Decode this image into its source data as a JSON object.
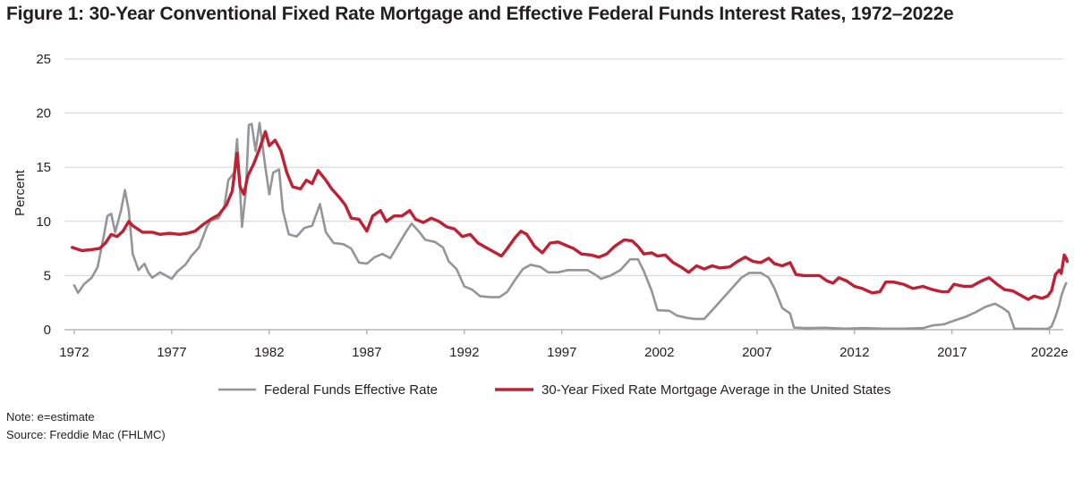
{
  "chart_data": {
    "type": "line",
    "title": "Figure 1: 30-Year Conventional Fixed Rate Mortgage and Effective Federal Funds Interest Rates, 1972–2022e",
    "ylabel": "Percent",
    "xlabel": "",
    "ylim": [
      0,
      25
    ],
    "yticks": [
      "0",
      "5",
      "10",
      "15",
      "20",
      "25"
    ],
    "xlim": [
      1971.5,
      2022.7
    ],
    "xticks": [
      {
        "year": 1972,
        "label": "1972"
      },
      {
        "year": 1977,
        "label": "1977"
      },
      {
        "year": 1982,
        "label": "1982"
      },
      {
        "year": 1987,
        "label": "1987"
      },
      {
        "year": 1992,
        "label": "1992"
      },
      {
        "year": 1997,
        "label": "1997"
      },
      {
        "year": 2002,
        "label": "2002"
      },
      {
        "year": 2007,
        "label": "2007"
      },
      {
        "year": 2012,
        "label": "2012"
      },
      {
        "year": 2017,
        "label": "2017"
      },
      {
        "year": 2022,
        "label": "2022e"
      }
    ],
    "grid": true,
    "legend_position": "bottom",
    "series": [
      {
        "name": "Federal Funds Effective Rate",
        "color": "#939598",
        "points": [
          [
            1972.0,
            4.1
          ],
          [
            1972.2,
            3.4
          ],
          [
            1972.5,
            4.2
          ],
          [
            1972.9,
            4.8
          ],
          [
            1973.2,
            5.8
          ],
          [
            1973.5,
            8.5
          ],
          [
            1973.7,
            10.5
          ],
          [
            1973.9,
            10.7
          ],
          [
            1974.1,
            9.0
          ],
          [
            1974.4,
            11.0
          ],
          [
            1974.6,
            12.9
          ],
          [
            1974.8,
            11.0
          ],
          [
            1975.0,
            7.0
          ],
          [
            1975.3,
            5.5
          ],
          [
            1975.6,
            6.1
          ],
          [
            1975.8,
            5.3
          ],
          [
            1976.0,
            4.8
          ],
          [
            1976.4,
            5.3
          ],
          [
            1976.8,
            4.9
          ],
          [
            1977.0,
            4.7
          ],
          [
            1977.3,
            5.4
          ],
          [
            1977.7,
            6.0
          ],
          [
            1978.0,
            6.8
          ],
          [
            1978.4,
            7.6
          ],
          [
            1978.8,
            9.5
          ],
          [
            1979.0,
            10.1
          ],
          [
            1979.4,
            10.3
          ],
          [
            1979.7,
            11.4
          ],
          [
            1979.9,
            13.8
          ],
          [
            1980.2,
            14.5
          ],
          [
            1980.35,
            17.6
          ],
          [
            1980.5,
            13.0
          ],
          [
            1980.6,
            9.5
          ],
          [
            1980.8,
            12.8
          ],
          [
            1980.95,
            18.9
          ],
          [
            1981.1,
            19.0
          ],
          [
            1981.3,
            16.5
          ],
          [
            1981.5,
            19.1
          ],
          [
            1981.8,
            15.0
          ],
          [
            1982.0,
            12.5
          ],
          [
            1982.2,
            14.5
          ],
          [
            1982.5,
            14.8
          ],
          [
            1982.7,
            11.0
          ],
          [
            1983.0,
            8.8
          ],
          [
            1983.4,
            8.6
          ],
          [
            1983.8,
            9.4
          ],
          [
            1984.2,
            9.6
          ],
          [
            1984.6,
            11.6
          ],
          [
            1984.9,
            9.0
          ],
          [
            1985.3,
            8.0
          ],
          [
            1985.8,
            7.9
          ],
          [
            1986.2,
            7.5
          ],
          [
            1986.6,
            6.2
          ],
          [
            1987.0,
            6.1
          ],
          [
            1987.4,
            6.7
          ],
          [
            1987.8,
            7.0
          ],
          [
            1988.2,
            6.6
          ],
          [
            1988.6,
            7.8
          ],
          [
            1989.0,
            9.0
          ],
          [
            1989.3,
            9.8
          ],
          [
            1989.7,
            9.0
          ],
          [
            1990.0,
            8.3
          ],
          [
            1990.5,
            8.1
          ],
          [
            1990.9,
            7.6
          ],
          [
            1991.2,
            6.3
          ],
          [
            1991.6,
            5.6
          ],
          [
            1992.0,
            4.0
          ],
          [
            1992.4,
            3.7
          ],
          [
            1992.8,
            3.1
          ],
          [
            1993.3,
            3.0
          ],
          [
            1993.8,
            3.0
          ],
          [
            1994.2,
            3.5
          ],
          [
            1994.6,
            4.6
          ],
          [
            1995.0,
            5.6
          ],
          [
            1995.4,
            6.0
          ],
          [
            1995.9,
            5.8
          ],
          [
            1996.3,
            5.3
          ],
          [
            1996.8,
            5.3
          ],
          [
            1997.3,
            5.5
          ],
          [
            1997.8,
            5.5
          ],
          [
            1998.3,
            5.5
          ],
          [
            1998.7,
            5.1
          ],
          [
            1999.0,
            4.7
          ],
          [
            1999.5,
            5.0
          ],
          [
            2000.0,
            5.5
          ],
          [
            2000.5,
            6.5
          ],
          [
            2000.9,
            6.5
          ],
          [
            2001.2,
            5.4
          ],
          [
            2001.6,
            3.6
          ],
          [
            2001.9,
            1.8
          ],
          [
            2002.5,
            1.75
          ],
          [
            2002.9,
            1.3
          ],
          [
            2003.4,
            1.1
          ],
          [
            2003.8,
            1.0
          ],
          [
            2004.3,
            1.0
          ],
          [
            2004.7,
            1.8
          ],
          [
            2005.2,
            2.8
          ],
          [
            2005.7,
            3.8
          ],
          [
            2006.2,
            4.8
          ],
          [
            2006.6,
            5.25
          ],
          [
            2007.2,
            5.25
          ],
          [
            2007.6,
            4.8
          ],
          [
            2007.9,
            3.8
          ],
          [
            2008.3,
            2.0
          ],
          [
            2008.7,
            1.5
          ],
          [
            2008.9,
            0.2
          ],
          [
            2009.5,
            0.15
          ],
          [
            2010.5,
            0.18
          ],
          [
            2011.5,
            0.1
          ],
          [
            2012.5,
            0.15
          ],
          [
            2013.5,
            0.1
          ],
          [
            2014.5,
            0.1
          ],
          [
            2015.5,
            0.15
          ],
          [
            2016.0,
            0.4
          ],
          [
            2016.6,
            0.5
          ],
          [
            2017.2,
            0.9
          ],
          [
            2017.7,
            1.2
          ],
          [
            2018.2,
            1.6
          ],
          [
            2018.7,
            2.1
          ],
          [
            2019.2,
            2.4
          ],
          [
            2019.6,
            2.0
          ],
          [
            2019.9,
            1.6
          ],
          [
            2020.2,
            0.1
          ],
          [
            2020.8,
            0.09
          ],
          [
            2021.5,
            0.08
          ],
          [
            2021.9,
            0.08
          ],
          [
            2022.1,
            0.3
          ],
          [
            2022.3,
            1.2
          ],
          [
            2022.5,
            2.3
          ],
          [
            2022.6,
            3.1
          ],
          [
            2022.75,
            3.9
          ],
          [
            2022.85,
            4.3
          ]
        ]
      },
      {
        "name": "30-Year Fixed Rate Mortgage Average in the United States",
        "color": "#bf2033",
        "points": [
          [
            1971.9,
            7.6
          ],
          [
            1972.4,
            7.3
          ],
          [
            1972.9,
            7.4
          ],
          [
            1973.3,
            7.5
          ],
          [
            1973.6,
            8.0
          ],
          [
            1973.9,
            8.8
          ],
          [
            1974.2,
            8.6
          ],
          [
            1974.5,
            9.1
          ],
          [
            1974.8,
            10.0
          ],
          [
            1975.0,
            9.6
          ],
          [
            1975.5,
            9.0
          ],
          [
            1976.0,
            9.0
          ],
          [
            1976.4,
            8.8
          ],
          [
            1976.9,
            8.9
          ],
          [
            1977.4,
            8.8
          ],
          [
            1977.8,
            8.9
          ],
          [
            1978.2,
            9.1
          ],
          [
            1978.6,
            9.7
          ],
          [
            1979.0,
            10.2
          ],
          [
            1979.4,
            10.6
          ],
          [
            1979.8,
            11.5
          ],
          [
            1980.1,
            12.8
          ],
          [
            1980.35,
            16.3
          ],
          [
            1980.5,
            13.2
          ],
          [
            1980.7,
            12.5
          ],
          [
            1980.9,
            14.2
          ],
          [
            1981.2,
            15.3
          ],
          [
            1981.5,
            16.7
          ],
          [
            1981.8,
            18.3
          ],
          [
            1982.0,
            17.0
          ],
          [
            1982.3,
            17.5
          ],
          [
            1982.6,
            16.5
          ],
          [
            1982.9,
            14.5
          ],
          [
            1983.2,
            13.2
          ],
          [
            1983.6,
            13.0
          ],
          [
            1983.9,
            13.8
          ],
          [
            1984.2,
            13.5
          ],
          [
            1984.5,
            14.7
          ],
          [
            1984.9,
            13.8
          ],
          [
            1985.2,
            13.0
          ],
          [
            1985.6,
            12.2
          ],
          [
            1985.9,
            11.5
          ],
          [
            1986.2,
            10.3
          ],
          [
            1986.6,
            10.2
          ],
          [
            1987.0,
            9.1
          ],
          [
            1987.3,
            10.5
          ],
          [
            1987.7,
            11.0
          ],
          [
            1988.0,
            10.0
          ],
          [
            1988.4,
            10.5
          ],
          [
            1988.8,
            10.5
          ],
          [
            1989.2,
            11.0
          ],
          [
            1989.5,
            10.2
          ],
          [
            1989.9,
            9.9
          ],
          [
            1990.3,
            10.3
          ],
          [
            1990.7,
            10.0
          ],
          [
            1991.1,
            9.5
          ],
          [
            1991.5,
            9.3
          ],
          [
            1991.9,
            8.6
          ],
          [
            1992.3,
            8.8
          ],
          [
            1992.7,
            8.0
          ],
          [
            1993.1,
            7.6
          ],
          [
            1993.5,
            7.2
          ],
          [
            1993.9,
            6.8
          ],
          [
            1994.2,
            7.5
          ],
          [
            1994.6,
            8.5
          ],
          [
            1994.9,
            9.1
          ],
          [
            1995.2,
            8.8
          ],
          [
            1995.6,
            7.7
          ],
          [
            1996.0,
            7.1
          ],
          [
            1996.4,
            8.0
          ],
          [
            1996.8,
            8.1
          ],
          [
            1997.2,
            7.8
          ],
          [
            1997.6,
            7.5
          ],
          [
            1998.0,
            7.0
          ],
          [
            1998.5,
            6.9
          ],
          [
            1998.9,
            6.7
          ],
          [
            1999.3,
            7.0
          ],
          [
            1999.7,
            7.7
          ],
          [
            2000.2,
            8.3
          ],
          [
            2000.6,
            8.2
          ],
          [
            2000.9,
            7.7
          ],
          [
            2001.2,
            7.0
          ],
          [
            2001.6,
            7.1
          ],
          [
            2001.9,
            6.8
          ],
          [
            2002.3,
            6.9
          ],
          [
            2002.7,
            6.2
          ],
          [
            2003.1,
            5.8
          ],
          [
            2003.5,
            5.3
          ],
          [
            2003.9,
            5.9
          ],
          [
            2004.3,
            5.6
          ],
          [
            2004.7,
            5.9
          ],
          [
            2005.1,
            5.7
          ],
          [
            2005.6,
            5.8
          ],
          [
            2006.0,
            6.3
          ],
          [
            2006.4,
            6.7
          ],
          [
            2006.8,
            6.3
          ],
          [
            2007.2,
            6.2
          ],
          [
            2007.6,
            6.6
          ],
          [
            2007.9,
            6.1
          ],
          [
            2008.3,
            5.9
          ],
          [
            2008.7,
            6.2
          ],
          [
            2009.0,
            5.1
          ],
          [
            2009.4,
            5.0
          ],
          [
            2009.8,
            5.0
          ],
          [
            2010.2,
            5.0
          ],
          [
            2010.6,
            4.5
          ],
          [
            2010.9,
            4.3
          ],
          [
            2011.2,
            4.8
          ],
          [
            2011.6,
            4.5
          ],
          [
            2012.0,
            4.0
          ],
          [
            2012.4,
            3.8
          ],
          [
            2012.9,
            3.4
          ],
          [
            2013.3,
            3.5
          ],
          [
            2013.6,
            4.4
          ],
          [
            2014.0,
            4.4
          ],
          [
            2014.5,
            4.2
          ],
          [
            2015.0,
            3.8
          ],
          [
            2015.5,
            4.0
          ],
          [
            2016.0,
            3.7
          ],
          [
            2016.5,
            3.5
          ],
          [
            2016.8,
            3.5
          ],
          [
            2017.1,
            4.2
          ],
          [
            2017.6,
            4.0
          ],
          [
            2018.0,
            4.0
          ],
          [
            2018.5,
            4.5
          ],
          [
            2018.9,
            4.8
          ],
          [
            2019.3,
            4.2
          ],
          [
            2019.7,
            3.7
          ],
          [
            2020.1,
            3.6
          ],
          [
            2020.5,
            3.2
          ],
          [
            2020.9,
            2.8
          ],
          [
            2021.2,
            3.1
          ],
          [
            2021.6,
            2.9
          ],
          [
            2021.9,
            3.1
          ],
          [
            2022.1,
            3.6
          ],
          [
            2022.3,
            5.1
          ],
          [
            2022.5,
            5.5
          ],
          [
            2022.6,
            5.2
          ],
          [
            2022.75,
            6.9
          ],
          [
            2022.85,
            6.6
          ],
          [
            2022.9,
            6.3
          ]
        ]
      }
    ]
  },
  "notes": {
    "note": "Note: e=estimate",
    "source": "Source: Freddie Mac (FHLMC)"
  }
}
